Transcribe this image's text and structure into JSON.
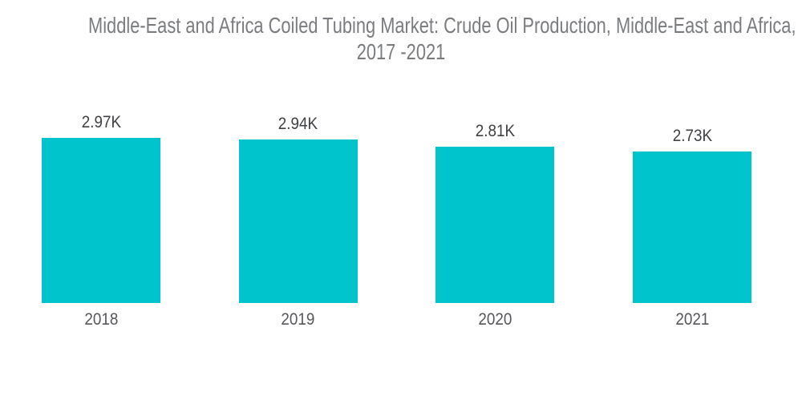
{
  "header": {
    "title_line1": "Middle-East and Africa Coiled Tubing Market: Crude Oil Production, Middle-East and Africa,",
    "title_line2": "2017 -2021"
  },
  "chart_data": {
    "type": "bar",
    "title": "Middle-East and Africa Coiled Tubing Market: Crude Oil Production, Middle-East and Africa, 2017 -2021",
    "categories": [
      "2018",
      "2019",
      "2020",
      "2021"
    ],
    "values": [
      2970,
      2940,
      2810,
      2730
    ],
    "value_labels": [
      "2.97K",
      "2.94K",
      "2.81K",
      "2.73K"
    ],
    "xlabel": "",
    "ylabel": "",
    "ylim": [
      0,
      3000
    ],
    "grid": false,
    "legend": false,
    "bar_color": "#00C4CC",
    "title_color": "#7A7C7F",
    "value_label_color": "#3F4144",
    "category_label_color": "#55575A",
    "background_color": "#FFFFFF"
  }
}
